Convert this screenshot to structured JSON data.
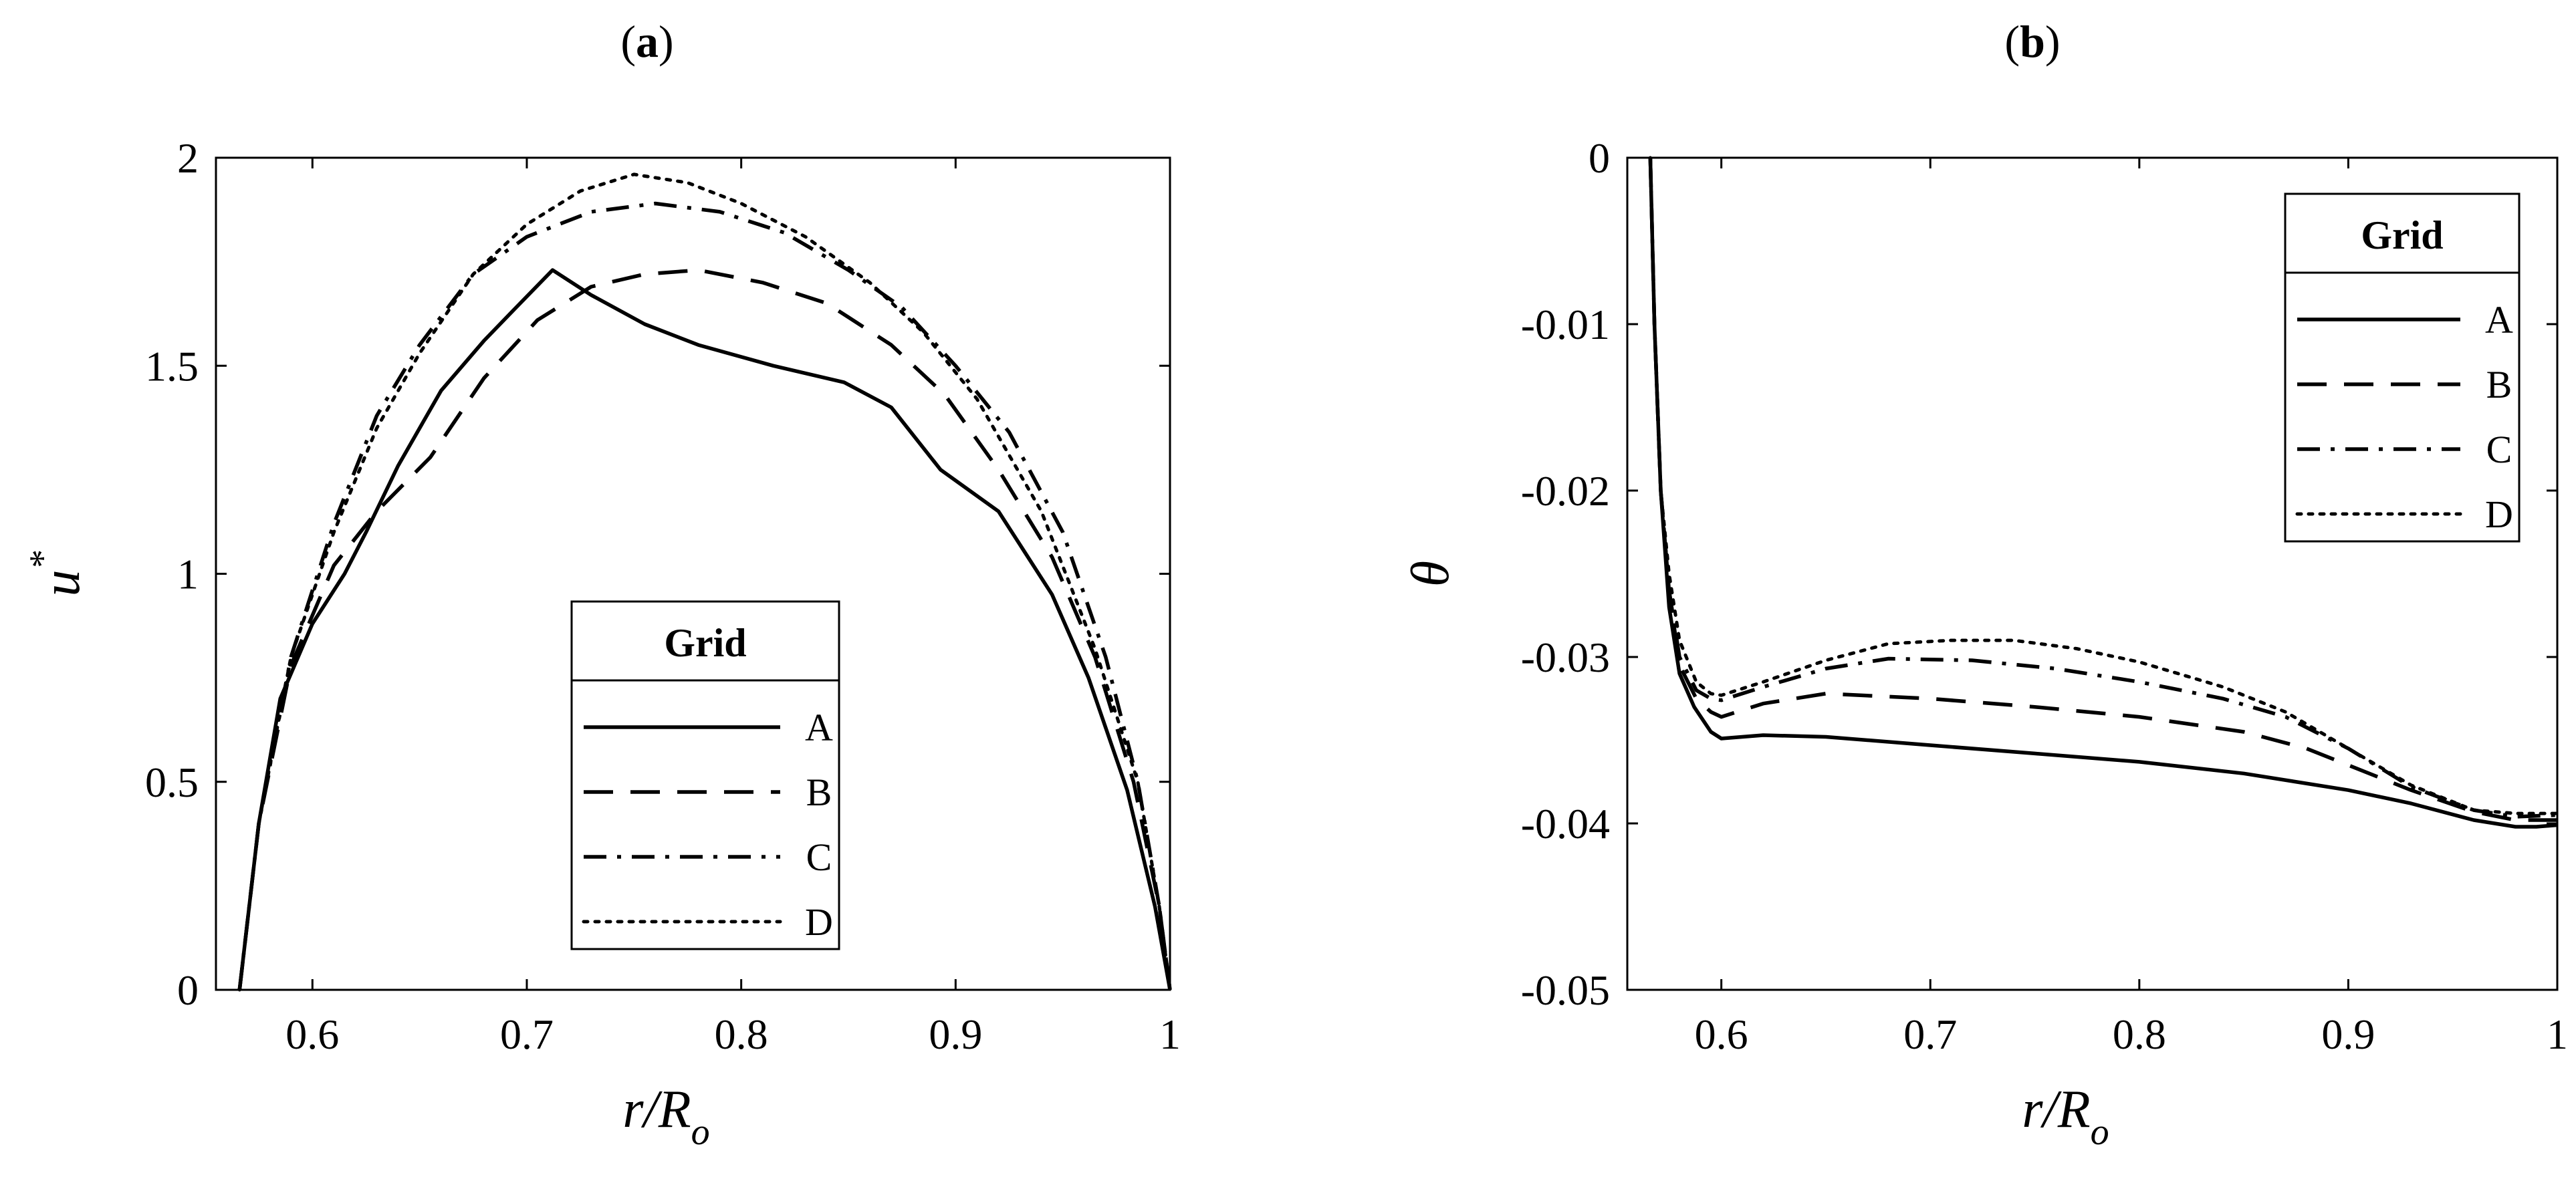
{
  "figure": {
    "panels": [
      {
        "label": "(a)",
        "letter": "a"
      },
      {
        "label": "(b)",
        "letter": "b"
      }
    ]
  },
  "chart_data": [
    {
      "type": "line",
      "panel": "(a)",
      "title": "",
      "xlabel": "r/Ro",
      "ylabel": "u*",
      "xlim": [
        0.555,
        1.0
      ],
      "ylim": [
        0,
        2
      ],
      "xticks": [
        0.6,
        0.7,
        0.8,
        0.9,
        1
      ],
      "xtick_labels": [
        "0.6",
        "0.7",
        "0.8",
        "0.9",
        "1"
      ],
      "yticks": [
        0,
        0.5,
        1,
        1.5,
        2
      ],
      "ytick_labels": [
        "0",
        "0.5",
        "1",
        "1.5",
        "2"
      ],
      "legend": {
        "title": "Grid",
        "placement": "center-bottom"
      },
      "grid": false,
      "series": [
        {
          "name": "A",
          "style": "solid",
          "x": [
            0.566,
            0.575,
            0.585,
            0.6,
            0.615,
            0.625,
            0.64,
            0.66,
            0.68,
            0.695,
            0.712,
            0.73,
            0.755,
            0.78,
            0.815,
            0.848,
            0.87,
            0.893,
            0.92,
            0.945,
            0.962,
            0.98,
            0.993,
            1.0
          ],
          "y": [
            0,
            0.4,
            0.7,
            0.88,
            1.0,
            1.1,
            1.26,
            1.44,
            1.56,
            1.64,
            1.73,
            1.67,
            1.6,
            1.55,
            1.5,
            1.46,
            1.4,
            1.25,
            1.15,
            0.95,
            0.75,
            0.48,
            0.2,
            0.0
          ]
        },
        {
          "name": "B",
          "style": "dashed",
          "x": [
            0.566,
            0.575,
            0.59,
            0.61,
            0.63,
            0.655,
            0.68,
            0.705,
            0.73,
            0.755,
            0.78,
            0.81,
            0.84,
            0.87,
            0.895,
            0.92,
            0.945,
            0.965,
            0.983,
            0.995,
            1.0
          ],
          "y": [
            0,
            0.4,
            0.78,
            1.02,
            1.15,
            1.28,
            1.47,
            1.61,
            1.69,
            1.72,
            1.73,
            1.7,
            1.65,
            1.55,
            1.43,
            1.25,
            1.04,
            0.8,
            0.5,
            0.2,
            0.0
          ]
        },
        {
          "name": "C",
          "style": "dashdot",
          "x": [
            0.566,
            0.575,
            0.59,
            0.61,
            0.63,
            0.65,
            0.675,
            0.7,
            0.73,
            0.76,
            0.79,
            0.82,
            0.85,
            0.875,
            0.9,
            0.925,
            0.95,
            0.97,
            0.985,
            0.995,
            1.0
          ],
          "y": [
            0,
            0.4,
            0.8,
            1.12,
            1.38,
            1.55,
            1.72,
            1.81,
            1.87,
            1.89,
            1.87,
            1.82,
            1.73,
            1.64,
            1.5,
            1.34,
            1.1,
            0.8,
            0.5,
            0.2,
            0.0
          ]
        },
        {
          "name": "D",
          "style": "dotted",
          "x": [
            0.566,
            0.575,
            0.59,
            0.61,
            0.63,
            0.65,
            0.675,
            0.7,
            0.725,
            0.75,
            0.775,
            0.8,
            0.83,
            0.86,
            0.885,
            0.91,
            0.94,
            0.965,
            0.985,
            0.995,
            1.0
          ],
          "y": [
            0,
            0.4,
            0.8,
            1.1,
            1.35,
            1.53,
            1.72,
            1.84,
            1.92,
            1.96,
            1.94,
            1.89,
            1.81,
            1.7,
            1.58,
            1.42,
            1.15,
            0.82,
            0.5,
            0.2,
            0.0
          ]
        }
      ]
    },
    {
      "type": "line",
      "panel": "(b)",
      "title": "",
      "xlabel": "r/Ro",
      "ylabel": "θ",
      "xlim": [
        0.555,
        1.0
      ],
      "ylim": [
        -0.05,
        0
      ],
      "xticks": [
        0.6,
        0.7,
        0.8,
        0.9,
        1
      ],
      "xtick_labels": [
        "0.6",
        "0.7",
        "0.8",
        "0.9",
        "1"
      ],
      "yticks": [
        -0.05,
        -0.04,
        -0.03,
        -0.02,
        -0.01,
        0
      ],
      "ytick_labels": [
        "-0.05",
        "-0.04",
        "-0.03",
        "-0.02",
        "-0.01",
        "0"
      ],
      "legend": {
        "title": "Grid",
        "placement": "top-right"
      },
      "grid": false,
      "series": [
        {
          "name": "A",
          "style": "solid",
          "x": [
            0.566,
            0.568,
            0.571,
            0.575,
            0.58,
            0.587,
            0.595,
            0.6,
            0.62,
            0.65,
            0.7,
            0.75,
            0.8,
            0.85,
            0.9,
            0.93,
            0.96,
            0.98,
            0.99,
            1.0
          ],
          "y": [
            0.0,
            -0.01,
            -0.02,
            -0.027,
            -0.031,
            -0.033,
            -0.0345,
            -0.0349,
            -0.0347,
            -0.0348,
            -0.0353,
            -0.0358,
            -0.0363,
            -0.037,
            -0.038,
            -0.0388,
            -0.0398,
            -0.0402,
            -0.0402,
            -0.0401
          ]
        },
        {
          "name": "B",
          "style": "dashed",
          "x": [
            0.566,
            0.568,
            0.571,
            0.575,
            0.58,
            0.588,
            0.595,
            0.6,
            0.62,
            0.65,
            0.7,
            0.75,
            0.8,
            0.85,
            0.88,
            0.9,
            0.93,
            0.96,
            0.98,
            1.0
          ],
          "y": [
            0.0,
            -0.01,
            -0.02,
            -0.026,
            -0.0305,
            -0.0325,
            -0.0333,
            -0.0336,
            -0.0328,
            -0.0322,
            -0.0325,
            -0.033,
            -0.0336,
            -0.0345,
            -0.0355,
            -0.0365,
            -0.038,
            -0.0393,
            -0.0398,
            -0.0398
          ]
        },
        {
          "name": "C",
          "style": "dashdot",
          "x": [
            0.566,
            0.568,
            0.571,
            0.575,
            0.58,
            0.588,
            0.595,
            0.6,
            0.62,
            0.65,
            0.68,
            0.72,
            0.76,
            0.8,
            0.84,
            0.87,
            0.9,
            0.93,
            0.96,
            0.98,
            1.0
          ],
          "y": [
            0.0,
            -0.01,
            -0.02,
            -0.026,
            -0.03,
            -0.032,
            -0.0325,
            -0.0326,
            -0.0318,
            -0.0307,
            -0.0301,
            -0.0302,
            -0.0307,
            -0.0315,
            -0.0325,
            -0.0336,
            -0.0355,
            -0.0378,
            -0.0392,
            -0.0396,
            -0.0395
          ]
        },
        {
          "name": "D",
          "style": "dotted",
          "x": [
            0.566,
            0.568,
            0.571,
            0.575,
            0.58,
            0.588,
            0.595,
            0.6,
            0.62,
            0.65,
            0.68,
            0.71,
            0.74,
            0.77,
            0.8,
            0.84,
            0.87,
            0.9,
            0.93,
            0.96,
            0.98,
            1.0
          ],
          "y": [
            0.0,
            -0.01,
            -0.02,
            -0.025,
            -0.029,
            -0.0315,
            -0.0322,
            -0.0323,
            -0.0315,
            -0.0302,
            -0.0292,
            -0.029,
            -0.029,
            -0.0295,
            -0.0303,
            -0.0318,
            -0.0333,
            -0.0355,
            -0.0377,
            -0.0392,
            -0.0394,
            -0.0394
          ]
        }
      ]
    }
  ]
}
